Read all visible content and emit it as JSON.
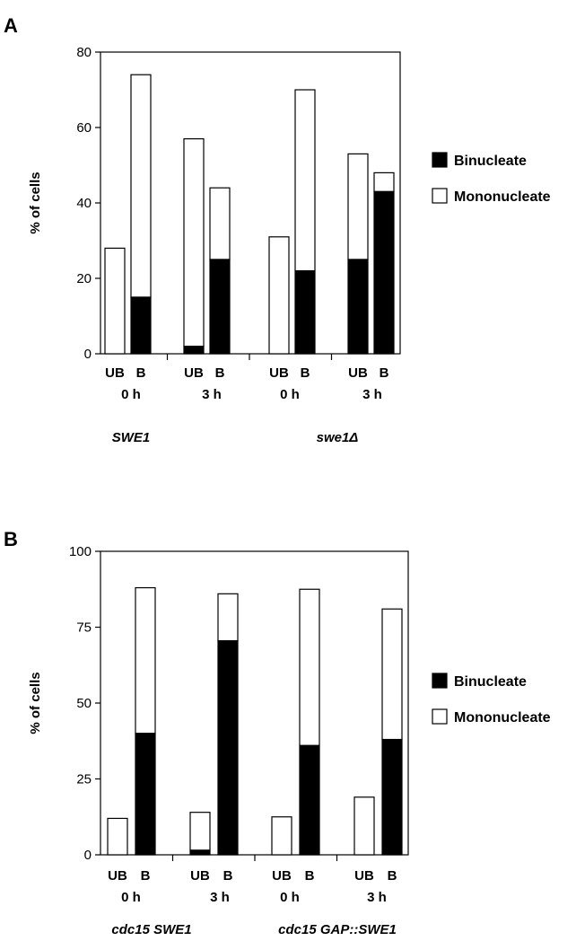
{
  "chart_data": [
    {
      "type": "bar",
      "stacked": true,
      "panel": "A",
      "ylabel": "% of cells",
      "ylim": [
        0,
        80
      ],
      "yticks": [
        0,
        20,
        40,
        60,
        80
      ],
      "legend_placement": "right",
      "legend": [
        {
          "label": "Binucleate",
          "color": "#000000"
        },
        {
          "label": "Mononucleate",
          "color": "#ffffff"
        }
      ],
      "bar_labels": [
        "UB",
        "B",
        "UB",
        "B",
        "UB",
        "B",
        "UB",
        "B"
      ],
      "time_labels": [
        "0 h",
        "3 h",
        "0 h",
        "3 h"
      ],
      "genotype_labels": [
        "SWE1",
        "swe1Δ"
      ],
      "series": [
        {
          "name": "Binucleate",
          "values": [
            0,
            15,
            2,
            25,
            0,
            22,
            25,
            43
          ]
        },
        {
          "name": "Mononucleate",
          "values": [
            28,
            59,
            55,
            19,
            31,
            48,
            28,
            5
          ]
        }
      ],
      "totals": [
        28,
        74,
        57,
        44,
        31,
        70,
        53,
        48
      ]
    },
    {
      "type": "bar",
      "stacked": true,
      "panel": "B",
      "ylabel": "% of cells",
      "ylim": [
        0,
        100
      ],
      "yticks": [
        0,
        25,
        50,
        75,
        100
      ],
      "legend_placement": "right",
      "legend": [
        {
          "label": "Binucleate",
          "color": "#000000"
        },
        {
          "label": "Mononucleate",
          "color": "#ffffff"
        }
      ],
      "bar_labels": [
        "UB",
        "B",
        "UB",
        "B",
        "UB",
        "B",
        "UB",
        "B"
      ],
      "time_labels": [
        "0 h",
        "3 h",
        "0 h",
        "3 h"
      ],
      "genotype_labels": [
        "cdc15 SWE1",
        "cdc15 GAP::SWE1"
      ],
      "series": [
        {
          "name": "Binucleate",
          "values": [
            0,
            40,
            1.5,
            70.5,
            0,
            36,
            0,
            38
          ]
        },
        {
          "name": "Mononucleate",
          "values": [
            12,
            48,
            12.5,
            15.5,
            12.5,
            51.5,
            19,
            43
          ]
        }
      ],
      "totals": [
        12,
        88,
        14,
        86,
        12.5,
        87.5,
        19,
        81
      ]
    }
  ]
}
